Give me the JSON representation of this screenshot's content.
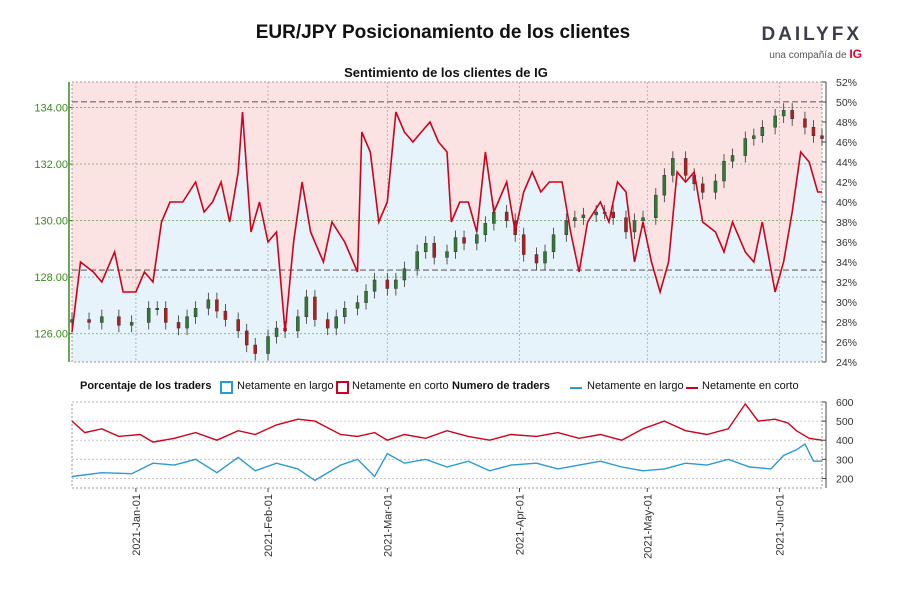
{
  "header": {
    "title": "EUR/JPY Posicionamiento de los clientes",
    "brand": "DAILYFX",
    "brand_sub": "una compañía de",
    "brand_ig": "IG"
  },
  "colors": {
    "long": "#2b9ad8",
    "short": "#d0021b",
    "bull_candle": "#2e7d32",
    "bear_candle": "#b71c1c",
    "long_fill": "#e6f3fa",
    "short_fill": "#fbe3e4",
    "left_axis": "#3a8a1c"
  },
  "chart_data": [
    {
      "type": "candlestick+line",
      "title": "Sentimiento de los clientes de IG",
      "price_axis": {
        "side": "left",
        "ylim": [
          125,
          134.9
        ],
        "ticks": [
          "126.00",
          "128.00",
          "130.00",
          "132.00",
          "134.00"
        ]
      },
      "percent_axis": {
        "side": "right",
        "ylim": [
          24,
          52
        ],
        "ticks": [
          "24%",
          "26%",
          "28%",
          "30%",
          "32%",
          "34%",
          "36%",
          "38%",
          "40%",
          "42%",
          "44%",
          "46%",
          "48%",
          "50%",
          "52%"
        ]
      },
      "x_ticks": [
        "2021-Jan-01",
        "2021-Feb-01",
        "2021-Mar-01",
        "2021-Apr-01",
        "2021-May-01",
        "2021-Jun-01"
      ],
      "date_range": [
        "2020-12-17",
        "2021-06-11"
      ],
      "reference_lines": [
        134.2,
        128.25
      ],
      "price_series": [
        [
          "2020-12-17",
          126.5
        ],
        [
          "2020-12-21",
          126.4
        ],
        [
          "2020-12-24",
          126.6
        ],
        [
          "2020-12-28",
          126.3
        ],
        [
          "2020-12-31",
          126.4
        ],
        [
          "2021-01-04",
          126.9
        ],
        [
          "2021-01-06",
          126.9
        ],
        [
          "2021-01-08",
          126.4
        ],
        [
          "2021-01-11",
          126.2
        ],
        [
          "2021-01-13",
          126.6
        ],
        [
          "2021-01-15",
          126.9
        ],
        [
          "2021-01-18",
          127.2
        ],
        [
          "2021-01-20",
          126.8
        ],
        [
          "2021-01-22",
          126.5
        ],
        [
          "2021-01-25",
          126.1
        ],
        [
          "2021-01-27",
          125.6
        ],
        [
          "2021-01-29",
          125.3
        ],
        [
          "2021-02-01",
          125.9
        ],
        [
          "2021-02-03",
          126.2
        ],
        [
          "2021-02-05",
          126.1
        ],
        [
          "2021-02-08",
          126.6
        ],
        [
          "2021-02-10",
          127.3
        ],
        [
          "2021-02-12",
          126.5
        ],
        [
          "2021-02-15",
          126.2
        ],
        [
          "2021-02-17",
          126.6
        ],
        [
          "2021-02-19",
          126.9
        ],
        [
          "2021-02-22",
          127.1
        ],
        [
          "2021-02-24",
          127.5
        ],
        [
          "2021-02-26",
          127.9
        ],
        [
          "2021-03-01",
          127.6
        ],
        [
          "2021-03-03",
          127.9
        ],
        [
          "2021-03-05",
          128.3
        ],
        [
          "2021-03-08",
          128.9
        ],
        [
          "2021-03-10",
          129.2
        ],
        [
          "2021-03-12",
          128.7
        ],
        [
          "2021-03-15",
          128.9
        ],
        [
          "2021-03-17",
          129.4
        ],
        [
          "2021-03-19",
          129.2
        ],
        [
          "2021-03-22",
          129.5
        ],
        [
          "2021-03-24",
          129.9
        ],
        [
          "2021-03-26",
          130.3
        ],
        [
          "2021-03-29",
          130.0
        ],
        [
          "2021-03-31",
          129.5
        ],
        [
          "2021-04-02",
          128.8
        ],
        [
          "2021-04-05",
          128.5
        ],
        [
          "2021-04-07",
          128.9
        ],
        [
          "2021-04-09",
          129.5
        ],
        [
          "2021-04-12",
          130.0
        ],
        [
          "2021-04-14",
          130.1
        ],
        [
          "2021-04-16",
          130.2
        ],
        [
          "2021-04-19",
          130.3
        ],
        [
          "2021-04-21",
          130.3
        ],
        [
          "2021-04-23",
          130.1
        ],
        [
          "2021-04-26",
          129.6
        ],
        [
          "2021-04-28",
          130.0
        ],
        [
          "2021-04-30",
          130.1
        ],
        [
          "2021-05-03",
          130.9
        ],
        [
          "2021-05-05",
          131.6
        ],
        [
          "2021-05-07",
          132.2
        ],
        [
          "2021-05-10",
          131.6
        ],
        [
          "2021-05-12",
          131.3
        ],
        [
          "2021-05-14",
          131.0
        ],
        [
          "2021-05-17",
          131.4
        ],
        [
          "2021-05-19",
          132.1
        ],
        [
          "2021-05-21",
          132.3
        ],
        [
          "2021-05-24",
          132.9
        ],
        [
          "2021-05-26",
          133.0
        ],
        [
          "2021-05-28",
          133.3
        ],
        [
          "2021-05-31",
          133.7
        ],
        [
          "2021-06-02",
          133.9
        ],
        [
          "2021-06-04",
          133.6
        ],
        [
          "2021-06-07",
          133.3
        ],
        [
          "2021-06-09",
          133.0
        ],
        [
          "2021-06-11",
          132.9
        ]
      ],
      "short_pct_series": [
        [
          "2020-12-17",
          27
        ],
        [
          "2020-12-19",
          34
        ],
        [
          "2020-12-22",
          33
        ],
        [
          "2020-12-24",
          32
        ],
        [
          "2020-12-27",
          35
        ],
        [
          "2020-12-29",
          31
        ],
        [
          "2021-01-01",
          31
        ],
        [
          "2021-01-03",
          33
        ],
        [
          "2021-01-05",
          32
        ],
        [
          "2021-01-07",
          38
        ],
        [
          "2021-01-09",
          40
        ],
        [
          "2021-01-12",
          40
        ],
        [
          "2021-01-15",
          42
        ],
        [
          "2021-01-17",
          39
        ],
        [
          "2021-01-19",
          40
        ],
        [
          "2021-01-21",
          42
        ],
        [
          "2021-01-23",
          38
        ],
        [
          "2021-01-25",
          43
        ],
        [
          "2021-01-26",
          49
        ],
        [
          "2021-01-28",
          37
        ],
        [
          "2021-01-30",
          40
        ],
        [
          "2021-02-01",
          36
        ],
        [
          "2021-02-03",
          37
        ],
        [
          "2021-02-05",
          27
        ],
        [
          "2021-02-07",
          36
        ],
        [
          "2021-02-09",
          42
        ],
        [
          "2021-02-11",
          37
        ],
        [
          "2021-02-14",
          34
        ],
        [
          "2021-02-16",
          38
        ],
        [
          "2021-02-19",
          36
        ],
        [
          "2021-02-22",
          33
        ],
        [
          "2021-02-23",
          47
        ],
        [
          "2021-02-25",
          45
        ],
        [
          "2021-02-27",
          38
        ],
        [
          "2021-03-01",
          40
        ],
        [
          "2021-03-03",
          49
        ],
        [
          "2021-03-05",
          47
        ],
        [
          "2021-03-07",
          46
        ],
        [
          "2021-03-09",
          47
        ],
        [
          "2021-03-11",
          48
        ],
        [
          "2021-03-13",
          46
        ],
        [
          "2021-03-15",
          45
        ],
        [
          "2021-03-16",
          38
        ],
        [
          "2021-03-18",
          40
        ],
        [
          "2021-03-20",
          40
        ],
        [
          "2021-03-22",
          37
        ],
        [
          "2021-03-24",
          45
        ],
        [
          "2021-03-26",
          39
        ],
        [
          "2021-03-29",
          42
        ],
        [
          "2021-03-31",
          37
        ],
        [
          "2021-04-02",
          41
        ],
        [
          "2021-04-04",
          43
        ],
        [
          "2021-04-06",
          41
        ],
        [
          "2021-04-08",
          42
        ],
        [
          "2021-04-11",
          42
        ],
        [
          "2021-04-13",
          37
        ],
        [
          "2021-04-15",
          33
        ],
        [
          "2021-04-17",
          38
        ],
        [
          "2021-04-20",
          40
        ],
        [
          "2021-04-22",
          38
        ],
        [
          "2021-04-24",
          42
        ],
        [
          "2021-04-26",
          41
        ],
        [
          "2021-04-28",
          34
        ],
        [
          "2021-04-30",
          38
        ],
        [
          "2021-05-02",
          34
        ],
        [
          "2021-05-04",
          31
        ],
        [
          "2021-05-06",
          34
        ],
        [
          "2021-05-08",
          43
        ],
        [
          "2021-05-10",
          42
        ],
        [
          "2021-05-12",
          43
        ],
        [
          "2021-05-14",
          38
        ],
        [
          "2021-05-17",
          37
        ],
        [
          "2021-05-19",
          35
        ],
        [
          "2021-05-21",
          38
        ],
        [
          "2021-05-24",
          35
        ],
        [
          "2021-05-26",
          34
        ],
        [
          "2021-05-28",
          38
        ],
        [
          "2021-05-31",
          31
        ],
        [
          "2021-06-02",
          34
        ],
        [
          "2021-06-04",
          39
        ],
        [
          "2021-06-06",
          45
        ],
        [
          "2021-06-08",
          44
        ],
        [
          "2021-06-10",
          41
        ],
        [
          "2021-06-11",
          41
        ]
      ]
    },
    {
      "type": "line",
      "title": "Numero de traders",
      "ylim": [
        150,
        600
      ],
      "ticks": [
        "200",
        "300",
        "400",
        "500",
        "600"
      ],
      "series": [
        {
          "name": "Netamente en largo",
          "points": [
            [
              "2020-12-17",
              210
            ],
            [
              "2020-12-24",
              230
            ],
            [
              "2020-12-31",
              225
            ],
            [
              "2021-01-05",
              280
            ],
            [
              "2021-01-10",
              270
            ],
            [
              "2021-01-15",
              300
            ],
            [
              "2021-01-20",
              230
            ],
            [
              "2021-01-25",
              310
            ],
            [
              "2021-01-29",
              240
            ],
            [
              "2021-02-03",
              280
            ],
            [
              "2021-02-08",
              250
            ],
            [
              "2021-02-12",
              190
            ],
            [
              "2021-02-18",
              270
            ],
            [
              "2021-02-22",
              300
            ],
            [
              "2021-02-26",
              210
            ],
            [
              "2021-03-01",
              330
            ],
            [
              "2021-03-05",
              280
            ],
            [
              "2021-03-10",
              300
            ],
            [
              "2021-03-15",
              260
            ],
            [
              "2021-03-20",
              290
            ],
            [
              "2021-03-25",
              240
            ],
            [
              "2021-03-30",
              270
            ],
            [
              "2021-04-05",
              280
            ],
            [
              "2021-04-10",
              250
            ],
            [
              "2021-04-15",
              270
            ],
            [
              "2021-04-20",
              290
            ],
            [
              "2021-04-25",
              260
            ],
            [
              "2021-04-30",
              240
            ],
            [
              "2021-05-05",
              250
            ],
            [
              "2021-05-10",
              280
            ],
            [
              "2021-05-15",
              270
            ],
            [
              "2021-05-20",
              300
            ],
            [
              "2021-05-25",
              260
            ],
            [
              "2021-05-30",
              250
            ],
            [
              "2021-06-02",
              320
            ],
            [
              "2021-06-05",
              350
            ],
            [
              "2021-06-07",
              380
            ],
            [
              "2021-06-09",
              290
            ],
            [
              "2021-06-11",
              290
            ]
          ]
        },
        {
          "name": "Netamente en corto",
          "points": [
            [
              "2020-12-17",
              500
            ],
            [
              "2020-12-20",
              440
            ],
            [
              "2020-12-24",
              460
            ],
            [
              "2020-12-28",
              420
            ],
            [
              "2021-01-02",
              430
            ],
            [
              "2021-01-05",
              390
            ],
            [
              "2021-01-10",
              410
            ],
            [
              "2021-01-15",
              440
            ],
            [
              "2021-01-20",
              400
            ],
            [
              "2021-01-25",
              450
            ],
            [
              "2021-01-29",
              430
            ],
            [
              "2021-02-03",
              480
            ],
            [
              "2021-02-08",
              510
            ],
            [
              "2021-02-12",
              500
            ],
            [
              "2021-02-18",
              430
            ],
            [
              "2021-02-22",
              420
            ],
            [
              "2021-02-26",
              440
            ],
            [
              "2021-03-01",
              400
            ],
            [
              "2021-03-05",
              430
            ],
            [
              "2021-03-10",
              410
            ],
            [
              "2021-03-15",
              450
            ],
            [
              "2021-03-20",
              420
            ],
            [
              "2021-03-25",
              400
            ],
            [
              "2021-03-30",
              430
            ],
            [
              "2021-04-05",
              420
            ],
            [
              "2021-04-10",
              440
            ],
            [
              "2021-04-15",
              410
            ],
            [
              "2021-04-20",
              430
            ],
            [
              "2021-04-25",
              400
            ],
            [
              "2021-04-30",
              460
            ],
            [
              "2021-05-05",
              500
            ],
            [
              "2021-05-10",
              450
            ],
            [
              "2021-05-15",
              430
            ],
            [
              "2021-05-20",
              460
            ],
            [
              "2021-05-24",
              590
            ],
            [
              "2021-05-27",
              500
            ],
            [
              "2021-05-31",
              510
            ],
            [
              "2021-06-03",
              490
            ],
            [
              "2021-06-05",
              450
            ],
            [
              "2021-06-08",
              410
            ],
            [
              "2021-06-11",
              400
            ]
          ]
        }
      ]
    }
  ],
  "legend": {
    "pct_title": "Porcentaje de los traders",
    "pct_long": "Netamente en largo",
    "pct_short": "Netamente en corto",
    "count_title": "Numero de traders",
    "count_long": "Netamente en largo",
    "count_short": "Netamente en corto"
  }
}
